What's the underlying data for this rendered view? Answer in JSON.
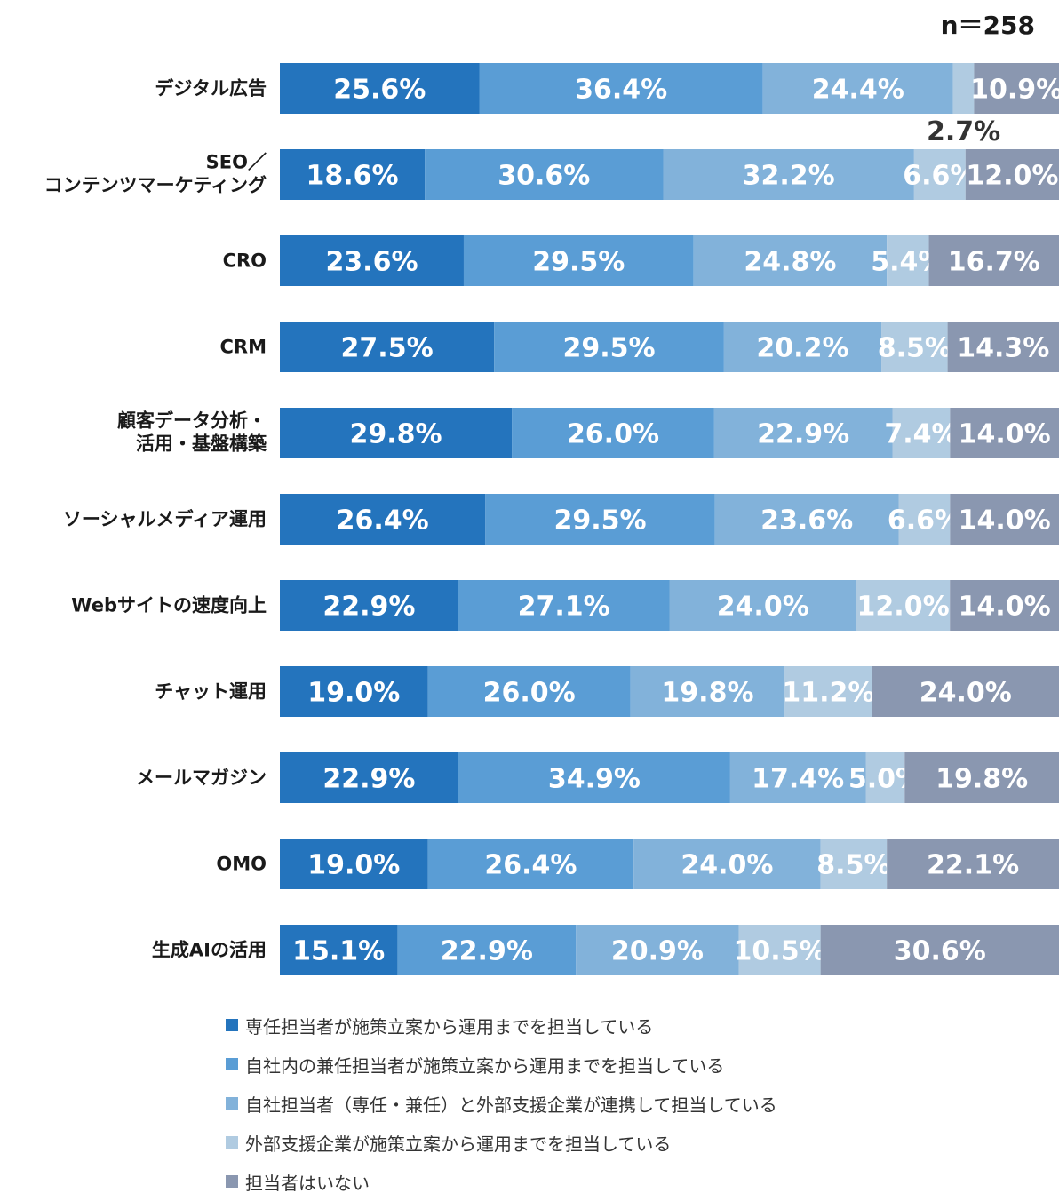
{
  "chart_data": {
    "type": "bar",
    "orientation": "horizontal",
    "stacked": true,
    "sample_size_label": "n＝258",
    "categories": [
      [
        "デジタル広告"
      ],
      [
        "SEO／",
        "コンテンツマーケティング"
      ],
      [
        "CRO"
      ],
      [
        "CRM"
      ],
      [
        "顧客データ分析・",
        "活用・基盤構築"
      ],
      [
        "ソーシャルメディア運用"
      ],
      [
        "Webサイトの速度向上"
      ],
      [
        "チャット運用"
      ],
      [
        "メールマガジン"
      ],
      [
        "OMO"
      ],
      [
        "生成AIの活用"
      ]
    ],
    "series": [
      {
        "name": "専任担当者が施策立案から運用までを担当している",
        "color": "#2474bd",
        "values": [
          25.6,
          18.6,
          23.6,
          27.5,
          29.8,
          26.4,
          22.9,
          19.0,
          22.9,
          19.0,
          15.1
        ]
      },
      {
        "name": "自社内の兼任担当者が施策立案から運用までを担当している",
        "color": "#5a9dd5",
        "values": [
          36.4,
          30.6,
          29.5,
          29.5,
          26.0,
          29.5,
          27.1,
          26.0,
          34.9,
          26.4,
          22.9
        ]
      },
      {
        "name": "自社担当者（専任・兼任）と外部支援企業が連携して担当している",
        "color": "#82b2da",
        "values": [
          24.4,
          32.2,
          24.8,
          20.2,
          22.9,
          23.6,
          24.0,
          19.8,
          17.4,
          24.0,
          20.9
        ]
      },
      {
        "name": "外部支援企業が施策立案から運用までを担当している",
        "color": "#b0cbe1",
        "values": [
          2.7,
          6.6,
          5.4,
          8.5,
          7.4,
          6.6,
          12.0,
          11.2,
          5.0,
          8.5,
          10.5
        ]
      },
      {
        "name": "担当者はいない",
        "color": "#8a97b0",
        "values": [
          10.9,
          12.0,
          16.7,
          14.3,
          14.0,
          14.0,
          14.0,
          24.0,
          19.8,
          22.1,
          30.6
        ]
      }
    ],
    "value_labels": [
      [
        "25.6%",
        "36.4%",
        "24.4%",
        "2.7%",
        "10.9%"
      ],
      [
        "18.6%",
        "30.6%",
        "32.2%",
        "6.6%",
        "12.0%"
      ],
      [
        "23.6%",
        "29.5%",
        "24.8%",
        "5.4%",
        "16.7%"
      ],
      [
        "27.5%",
        "29.5%",
        "20.2%",
        "8.5%",
        "14.3%"
      ],
      [
        "29.8%",
        "26.0%",
        "22.9%",
        "7.4%",
        "14.0%"
      ],
      [
        "26.4%",
        "29.5%",
        "23.6%",
        "6.6%",
        "14.0%"
      ],
      [
        "22.9%",
        "27.1%",
        "24.0%",
        "12.0%",
        "14.0%"
      ],
      [
        "19.0%",
        "26.0%",
        "19.8%",
        "11.2%",
        "24.0%"
      ],
      [
        "22.9%",
        "34.9%",
        "17.4%",
        "5.0%",
        "19.8%"
      ],
      [
        "19.0%",
        "26.4%",
        "24.0%",
        "8.5%",
        "22.1%"
      ],
      [
        "15.1%",
        "22.9%",
        "20.9%",
        "10.5%",
        "30.6%"
      ]
    ],
    "outside_labels": [
      {
        "category_index": 0,
        "series_index": 3,
        "text": "2.7%"
      }
    ],
    "xlim": [
      0,
      100
    ],
    "unit": "%",
    "legend_position": "bottom"
  }
}
